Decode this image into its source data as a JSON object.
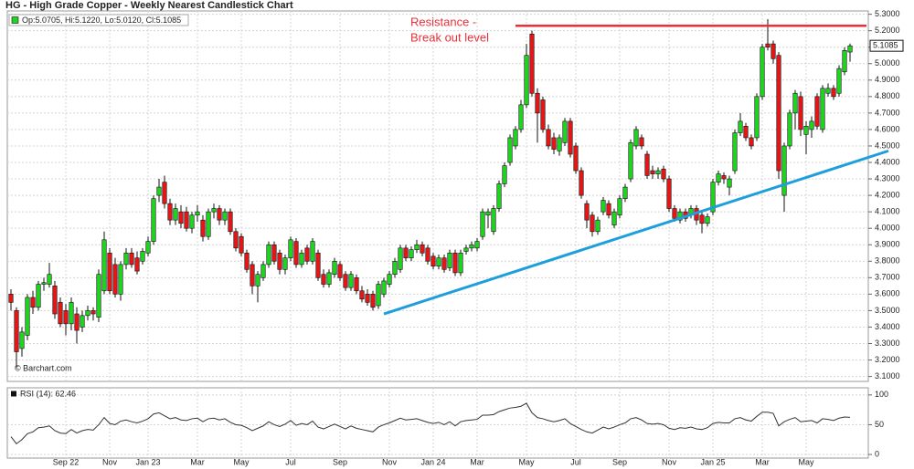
{
  "chart_data": {
    "type": "candlestick",
    "title": "HG - High Grade Copper - Weekly Nearest Candlestick Chart",
    "legend_text": "Op:5.0705, Hi:5.1220, Lo:5.0120, Cl:5.1085",
    "watermark": "© Barchart.com",
    "up_color": "#22d322",
    "down_color": "#e01818",
    "categories": [
      null,
      null,
      null,
      null,
      null,
      null,
      null,
      null,
      null,
      null,
      "Sep 22",
      null,
      null,
      null,
      null,
      null,
      null,
      null,
      "Nov",
      null,
      null,
      null,
      null,
      null,
      null,
      "Jan 23",
      null,
      null,
      null,
      null,
      null,
      null,
      null,
      null,
      "Mar",
      null,
      null,
      null,
      null,
      null,
      null,
      null,
      "May",
      null,
      null,
      null,
      null,
      null,
      null,
      null,
      null,
      "Jul",
      null,
      null,
      null,
      null,
      null,
      null,
      null,
      null,
      "Sep",
      null,
      null,
      null,
      null,
      null,
      null,
      null,
      null,
      "Nov",
      null,
      null,
      null,
      null,
      null,
      null,
      null,
      "Jan 24",
      null,
      null,
      null,
      null,
      null,
      null,
      null,
      "Mar",
      null,
      null,
      null,
      null,
      null,
      null,
      null,
      null,
      "May",
      null,
      null,
      null,
      null,
      null,
      null,
      null,
      null,
      "Jul",
      null,
      null,
      null,
      null,
      null,
      null,
      null,
      "Sep",
      null,
      null,
      null,
      null,
      null,
      null,
      null,
      null,
      "Nov",
      null,
      null,
      null,
      null,
      null,
      null,
      null,
      "Jan 25",
      null,
      null,
      null,
      null,
      null,
      null,
      null,
      null,
      "Mar",
      null,
      null,
      null,
      null,
      null,
      null,
      null,
      "May",
      null,
      null,
      null,
      null,
      null,
      null,
      null,
      null
    ],
    "ohlc": [
      [
        3.6,
        3.63,
        3.5,
        3.55
      ],
      [
        3.5,
        3.52,
        3.15,
        3.25
      ],
      [
        3.27,
        3.4,
        3.22,
        3.37
      ],
      [
        3.35,
        3.6,
        3.32,
        3.58
      ],
      [
        3.58,
        3.62,
        3.48,
        3.52
      ],
      [
        3.52,
        3.68,
        3.5,
        3.66
      ],
      [
        3.66,
        3.7,
        3.62,
        3.67
      ],
      [
        3.66,
        3.79,
        3.64,
        3.72
      ],
      [
        3.65,
        3.68,
        3.45,
        3.48
      ],
      [
        3.55,
        3.58,
        3.4,
        3.42
      ],
      [
        3.5,
        3.54,
        3.35,
        3.42
      ],
      [
        3.42,
        3.58,
        3.38,
        3.55
      ],
      [
        3.48,
        3.52,
        3.3,
        3.38
      ],
      [
        3.4,
        3.5,
        3.37,
        3.47
      ],
      [
        3.47,
        3.53,
        3.44,
        3.5
      ],
      [
        3.5,
        3.52,
        3.44,
        3.48
      ],
      [
        3.46,
        3.75,
        3.43,
        3.72
      ],
      [
        3.62,
        3.98,
        3.6,
        3.93
      ],
      [
        3.85,
        3.88,
        3.6,
        3.62
      ],
      [
        3.78,
        3.82,
        3.58,
        3.6
      ],
      [
        3.6,
        3.8,
        3.56,
        3.78
      ],
      [
        3.78,
        3.88,
        3.75,
        3.85
      ],
      [
        3.85,
        3.88,
        3.76,
        3.78
      ],
      [
        3.82,
        3.86,
        3.72,
        3.74
      ],
      [
        3.8,
        3.88,
        3.78,
        3.86
      ],
      [
        3.85,
        3.95,
        3.83,
        3.92
      ],
      [
        3.92,
        4.2,
        3.9,
        4.18
      ],
      [
        4.2,
        4.3,
        4.16,
        4.25
      ],
      [
        4.28,
        4.32,
        4.12,
        4.15
      ],
      [
        4.15,
        4.18,
        4.02,
        4.05
      ],
      [
        4.05,
        4.15,
        4.02,
        4.12
      ],
      [
        4.1,
        4.14,
        4.0,
        4.03
      ],
      [
        4.1,
        4.13,
        3.98,
        4.0
      ],
      [
        4.0,
        4.1,
        3.97,
        4.08
      ],
      [
        4.08,
        4.14,
        4.04,
        4.1
      ],
      [
        4.05,
        4.08,
        3.92,
        3.95
      ],
      [
        3.95,
        4.12,
        3.93,
        4.1
      ],
      [
        4.1,
        4.15,
        4.06,
        4.12
      ],
      [
        4.12,
        4.14,
        4.02,
        4.05
      ],
      [
        4.05,
        4.12,
        4.02,
        4.1
      ],
      [
        4.1,
        4.12,
        3.96,
        3.98
      ],
      [
        3.98,
        4.0,
        3.86,
        3.88
      ],
      [
        3.95,
        3.97,
        3.83,
        3.85
      ],
      [
        3.85,
        3.87,
        3.73,
        3.75
      ],
      [
        3.78,
        3.8,
        3.6,
        3.65
      ],
      [
        3.65,
        3.74,
        3.55,
        3.72
      ],
      [
        3.7,
        3.8,
        3.68,
        3.78
      ],
      [
        3.78,
        3.92,
        3.76,
        3.9
      ],
      [
        3.9,
        3.92,
        3.78,
        3.8
      ],
      [
        3.85,
        3.87,
        3.72,
        3.75
      ],
      [
        3.75,
        3.84,
        3.72,
        3.82
      ],
      [
        3.82,
        3.95,
        3.8,
        3.93
      ],
      [
        3.92,
        3.94,
        3.76,
        3.78
      ],
      [
        3.78,
        3.87,
        3.76,
        3.85
      ],
      [
        3.88,
        3.9,
        3.78,
        3.8
      ],
      [
        3.8,
        3.94,
        3.78,
        3.92
      ],
      [
        3.85,
        3.87,
        3.68,
        3.7
      ],
      [
        3.72,
        3.75,
        3.64,
        3.66
      ],
      [
        3.66,
        3.75,
        3.64,
        3.73
      ],
      [
        3.72,
        3.82,
        3.7,
        3.8
      ],
      [
        3.78,
        3.8,
        3.68,
        3.7
      ],
      [
        3.72,
        3.74,
        3.62,
        3.64
      ],
      [
        3.64,
        3.74,
        3.62,
        3.72
      ],
      [
        3.7,
        3.72,
        3.6,
        3.62
      ],
      [
        3.62,
        3.65,
        3.55,
        3.57
      ],
      [
        3.6,
        3.63,
        3.53,
        3.55
      ],
      [
        3.6,
        3.62,
        3.5,
        3.52
      ],
      [
        3.53,
        3.68,
        3.51,
        3.66
      ],
      [
        3.6,
        3.7,
        3.58,
        3.68
      ],
      [
        3.66,
        3.74,
        3.64,
        3.72
      ],
      [
        3.72,
        3.82,
        3.7,
        3.8
      ],
      [
        3.75,
        3.9,
        3.73,
        3.88
      ],
      [
        3.88,
        3.9,
        3.8,
        3.82
      ],
      [
        3.82,
        3.89,
        3.8,
        3.87
      ],
      [
        3.87,
        3.93,
        3.85,
        3.9
      ],
      [
        3.9,
        3.92,
        3.83,
        3.85
      ],
      [
        3.88,
        3.9,
        3.78,
        3.8
      ],
      [
        3.83,
        3.85,
        3.75,
        3.77
      ],
      [
        3.77,
        3.84,
        3.75,
        3.82
      ],
      [
        3.82,
        3.84,
        3.73,
        3.75
      ],
      [
        3.76,
        3.87,
        3.74,
        3.85
      ],
      [
        3.85,
        3.87,
        3.71,
        3.73
      ],
      [
        3.73,
        3.87,
        3.71,
        3.85
      ],
      [
        3.86,
        3.9,
        3.84,
        3.88
      ],
      [
        3.88,
        3.92,
        3.86,
        3.9
      ],
      [
        3.88,
        3.94,
        3.86,
        3.92
      ],
      [
        3.95,
        4.12,
        3.93,
        4.1
      ],
      [
        4.08,
        4.12,
        4.0,
        4.1
      ],
      [
        3.98,
        4.14,
        3.96,
        4.12
      ],
      [
        4.12,
        4.29,
        4.1,
        4.27
      ],
      [
        4.27,
        4.4,
        4.25,
        4.38
      ],
      [
        4.4,
        4.57,
        4.38,
        4.55
      ],
      [
        4.5,
        4.62,
        4.48,
        4.6
      ],
      [
        4.6,
        4.78,
        4.58,
        4.75
      ],
      [
        4.75,
        5.12,
        4.73,
        5.05
      ],
      [
        5.18,
        5.2,
        4.8,
        4.82
      ],
      [
        4.82,
        4.85,
        4.52,
        4.7
      ],
      [
        4.78,
        4.8,
        4.58,
        4.6
      ],
      [
        4.6,
        4.63,
        4.48,
        4.5
      ],
      [
        4.55,
        4.58,
        4.45,
        4.48
      ],
      [
        4.47,
        4.57,
        4.44,
        4.55
      ],
      [
        4.52,
        4.67,
        4.5,
        4.65
      ],
      [
        4.65,
        4.67,
        4.43,
        4.45
      ],
      [
        4.5,
        4.52,
        4.33,
        4.35
      ],
      [
        4.35,
        4.37,
        4.18,
        4.2
      ],
      [
        4.15,
        4.17,
        4.0,
        4.05
      ],
      [
        4.08,
        4.1,
        3.95,
        3.98
      ],
      [
        3.98,
        4.07,
        3.96,
        4.05
      ],
      [
        4.1,
        4.19,
        4.08,
        4.17
      ],
      [
        4.15,
        4.17,
        4.06,
        4.08
      ],
      [
        4.02,
        4.12,
        4.0,
        4.1
      ],
      [
        4.08,
        4.2,
        4.06,
        4.18
      ],
      [
        4.18,
        4.27,
        4.16,
        4.25
      ],
      [
        4.3,
        4.54,
        4.28,
        4.52
      ],
      [
        4.5,
        4.62,
        4.48,
        4.6
      ],
      [
        4.55,
        4.57,
        4.48,
        4.5
      ],
      [
        4.45,
        4.47,
        4.3,
        4.32
      ],
      [
        4.35,
        4.38,
        4.3,
        4.33
      ],
      [
        4.33,
        4.37,
        4.3,
        4.35
      ],
      [
        4.36,
        4.38,
        4.28,
        4.3
      ],
      [
        4.3,
        4.32,
        4.1,
        4.12
      ],
      [
        4.12,
        4.14,
        4.04,
        4.06
      ],
      [
        4.05,
        4.12,
        4.03,
        4.1
      ],
      [
        4.1,
        4.12,
        4.04,
        4.06
      ],
      [
        4.08,
        4.14,
        4.06,
        4.12
      ],
      [
        4.12,
        4.14,
        4.02,
        4.05
      ],
      [
        4.08,
        4.1,
        3.97,
        4.03
      ],
      [
        4.03,
        4.09,
        4.01,
        4.07
      ],
      [
        4.1,
        4.3,
        4.08,
        4.28
      ],
      [
        4.28,
        4.35,
        4.26,
        4.33
      ],
      [
        4.32,
        4.34,
        4.27,
        4.3
      ],
      [
        4.25,
        4.32,
        4.2,
        4.3
      ],
      [
        4.35,
        4.6,
        4.33,
        4.58
      ],
      [
        4.58,
        4.7,
        4.56,
        4.65
      ],
      [
        4.62,
        4.64,
        4.53,
        4.55
      ],
      [
        4.55,
        4.57,
        4.48,
        4.5
      ],
      [
        4.55,
        4.82,
        4.53,
        4.8
      ],
      [
        4.8,
        5.12,
        4.78,
        5.1
      ],
      [
        5.12,
        5.27,
        5.08,
        5.1
      ],
      [
        5.12,
        5.14,
        5.0,
        5.03
      ],
      [
        5.05,
        5.07,
        4.3,
        4.35
      ],
      [
        4.2,
        4.52,
        4.1,
        4.5
      ],
      [
        4.5,
        4.72,
        4.48,
        4.7
      ],
      [
        4.7,
        4.84,
        4.6,
        4.82
      ],
      [
        4.8,
        4.83,
        4.56,
        4.6
      ],
      [
        4.57,
        4.65,
        4.45,
        4.62
      ],
      [
        4.6,
        4.68,
        4.55,
        4.65
      ],
      [
        4.8,
        4.82,
        4.6,
        4.62
      ],
      [
        4.6,
        4.87,
        4.58,
        4.85
      ],
      [
        4.82,
        4.88,
        4.8,
        4.85
      ],
      [
        4.85,
        4.87,
        4.78,
        4.8
      ],
      [
        4.82,
        4.99,
        4.8,
        4.97
      ],
      [
        4.95,
        5.1,
        4.93,
        5.08
      ],
      [
        5.0705,
        5.122,
        5.012,
        5.1085
      ]
    ],
    "ylim": [
      3.07,
      5.32
    ],
    "yticks": [
      {
        "value": 3.1,
        "label": "3.1000"
      },
      {
        "value": 3.2,
        "label": "3.2000"
      },
      {
        "value": 3.3,
        "label": "3.3000"
      },
      {
        "value": 3.4,
        "label": "3.4000"
      },
      {
        "value": 3.5,
        "label": "3.5000"
      },
      {
        "value": 3.6,
        "label": "3.6000"
      },
      {
        "value": 3.7,
        "label": "3.7000"
      },
      {
        "value": 3.8,
        "label": "3.8000"
      },
      {
        "value": 3.9,
        "label": "3.9000"
      },
      {
        "value": 4.0,
        "label": "4.0000"
      },
      {
        "value": 4.1,
        "label": "4.1000"
      },
      {
        "value": 4.2,
        "label": "4.2000"
      },
      {
        "value": 4.3,
        "label": "4.3000"
      },
      {
        "value": 4.4,
        "label": "4.4000"
      },
      {
        "value": 4.5,
        "label": "4.5000"
      },
      {
        "value": 4.6,
        "label": "4.6000"
      },
      {
        "value": 4.7,
        "label": "4.7000"
      },
      {
        "value": 4.8,
        "label": "4.8000"
      },
      {
        "value": 4.9,
        "label": "4.9000"
      },
      {
        "value": 5.0,
        "label": "5.0000"
      },
      {
        "value": 5.1,
        "label": "5.1000"
      },
      {
        "value": 5.2,
        "label": "5.2000"
      },
      {
        "value": 5.3,
        "label": "5.3000"
      }
    ],
    "grid": true,
    "last_price": {
      "value": 5.1085,
      "label": "5.1085"
    },
    "resistance": {
      "label": [
        "Resistance -",
        "Break out level"
      ],
      "value": 5.23,
      "x": [
        92,
        156
      ],
      "color": "#e8303a"
    },
    "trendline": {
      "x": [
        68,
        160
      ],
      "y": [
        3.48,
        4.47
      ],
      "color": "#1e9fdc"
    },
    "rsi": {
      "label": "RSI (14): 62.46",
      "color": "#333333",
      "ylim": [
        -6,
        112
      ],
      "yticks": [
        0,
        50,
        100
      ],
      "values": [
        30,
        18,
        25,
        35,
        38,
        45,
        46,
        48,
        40,
        36,
        35,
        42,
        36,
        40,
        42,
        41,
        50,
        62,
        52,
        50,
        56,
        58,
        55,
        53,
        56,
        60,
        68,
        70,
        65,
        60,
        62,
        58,
        57,
        60,
        61,
        55,
        60,
        61,
        58,
        60,
        54,
        50,
        49,
        45,
        40,
        44,
        48,
        55,
        50,
        47,
        51,
        57,
        49,
        52,
        50,
        56,
        46,
        43,
        47,
        51,
        47,
        43,
        48,
        44,
        42,
        40,
        38,
        46,
        50,
        53,
        57,
        61,
        58,
        59,
        60,
        57,
        54,
        52,
        54,
        50,
        55,
        48,
        55,
        57,
        58,
        59,
        66,
        66,
        67,
        72,
        75,
        78,
        79,
        81,
        86,
        70,
        62,
        60,
        57,
        55,
        57,
        60,
        52,
        47,
        42,
        38,
        36,
        41,
        46,
        43,
        46,
        50,
        53,
        60,
        62,
        58,
        52,
        51,
        52,
        50,
        44,
        42,
        45,
        44,
        46,
        43,
        42,
        45,
        52,
        54,
        53,
        53,
        60,
        62,
        58,
        56,
        64,
        71,
        71,
        69,
        48,
        55,
        59,
        62,
        55,
        56,
        57,
        53,
        60,
        59,
        57,
        61,
        63,
        62.46
      ]
    }
  }
}
